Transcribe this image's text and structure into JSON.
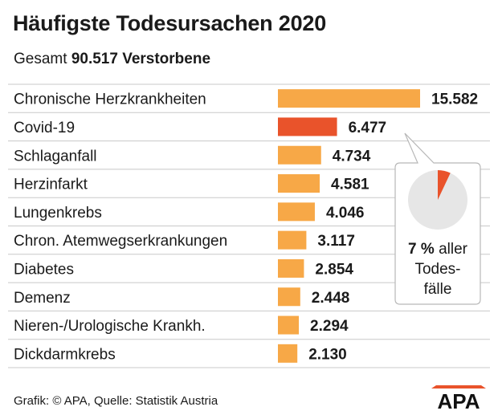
{
  "title": "Häufigste Todesursachen 2020",
  "subtitle": {
    "prefix": "Gesamt",
    "total": "90.517 Verstorbene"
  },
  "chart_data": {
    "type": "bar",
    "orientation": "horizontal",
    "categories": [
      "Chronische Herzkrankheiten",
      "Covid-19",
      "Schlaganfall",
      "Herzinfarkt",
      "Lungenkrebs",
      "Chron. Atemwegserkrankungen",
      "Diabetes",
      "Demenz",
      "Nieren-/Urologische Krankh.",
      "Dickdarmkrebs"
    ],
    "values": [
      15582,
      6477,
      4734,
      4581,
      4046,
      3117,
      2854,
      2448,
      2294,
      2130
    ],
    "value_labels": [
      "15.582",
      "6.477",
      "4.734",
      "4.581",
      "4.046",
      "3.117",
      "2.854",
      "2.448",
      "2.294",
      "2.130"
    ],
    "highlight_index": 1,
    "colors": {
      "bar": "#f7a847",
      "highlight": "#e9532b",
      "pie_bg": "#e6e6e6",
      "pie_slice": "#e9532b",
      "row_line": "#c8c8c8"
    },
    "grid": false,
    "legend": "none",
    "callout": {
      "pie_fraction": 0.07,
      "percent": "7 %",
      "text_1": "aller",
      "text_2": "Todes-",
      "text_3": "fälle"
    }
  },
  "footer": "Grafik: © APA, Quelle: Statistik Austria",
  "logo": "APA"
}
